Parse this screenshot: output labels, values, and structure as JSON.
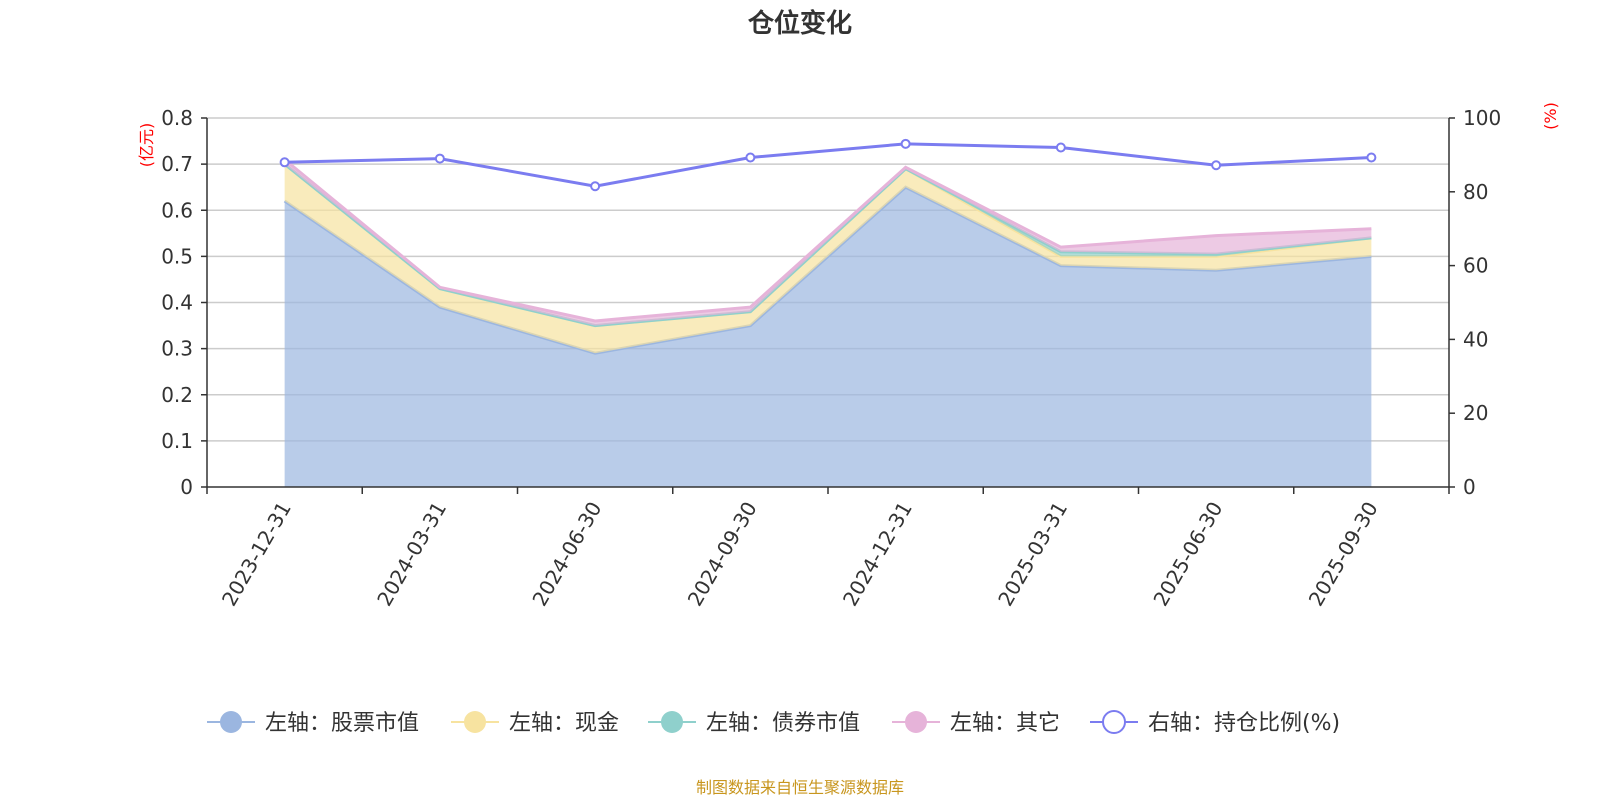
{
  "chart_data": {
    "type": "area",
    "title": "仓位变化",
    "categories": [
      "2023-12-31",
      "2024-03-31",
      "2024-06-30",
      "2024-09-30",
      "2024-12-31",
      "2025-03-31",
      "2025-06-30",
      "2025-09-30"
    ],
    "left_axis": {
      "unit": "(亿元)",
      "ylim": [
        0,
        0.8
      ],
      "ticks": [
        "0",
        "0.1",
        "0.2",
        "0.3",
        "0.4",
        "0.5",
        "0.6",
        "0.7",
        "0.8"
      ]
    },
    "right_axis": {
      "unit": "(%)",
      "ylim": [
        0,
        100
      ],
      "ticks": [
        "0",
        "20",
        "40",
        "60",
        "80",
        "100"
      ]
    },
    "series": [
      {
        "name": "左轴：股票市值",
        "axis": "left",
        "stacked": true,
        "color": "#9bb6e0",
        "values": [
          0.62,
          0.39,
          0.29,
          0.35,
          0.65,
          0.48,
          0.47,
          0.5
        ]
      },
      {
        "name": "左轴：现金",
        "axis": "left",
        "stacked": true,
        "color": "#f7e3a0",
        "values": [
          0.08,
          0.04,
          0.06,
          0.03,
          0.04,
          0.02,
          0.03,
          0.04
        ]
      },
      {
        "name": "左轴：债券市值",
        "axis": "left",
        "stacked": true,
        "color": "#8fd0cc",
        "values": [
          0,
          0,
          0,
          0,
          0,
          0.01,
          0.005,
          0
        ]
      },
      {
        "name": "左轴：其它",
        "axis": "left",
        "stacked": true,
        "color": "#e6b3d9",
        "values": [
          0.01,
          0.003,
          0.01,
          0.01,
          0.003,
          0.01,
          0.04,
          0.02
        ]
      },
      {
        "name": "右轴：持仓比例(%)",
        "axis": "right",
        "type": "line",
        "color": "#7b7cf0",
        "values": [
          88,
          89,
          81.5,
          89.3,
          93,
          92,
          87.2,
          89.3
        ]
      }
    ],
    "grid": true,
    "legend_position": "bottom"
  },
  "footer": "制图数据来自恒生聚源数据库"
}
